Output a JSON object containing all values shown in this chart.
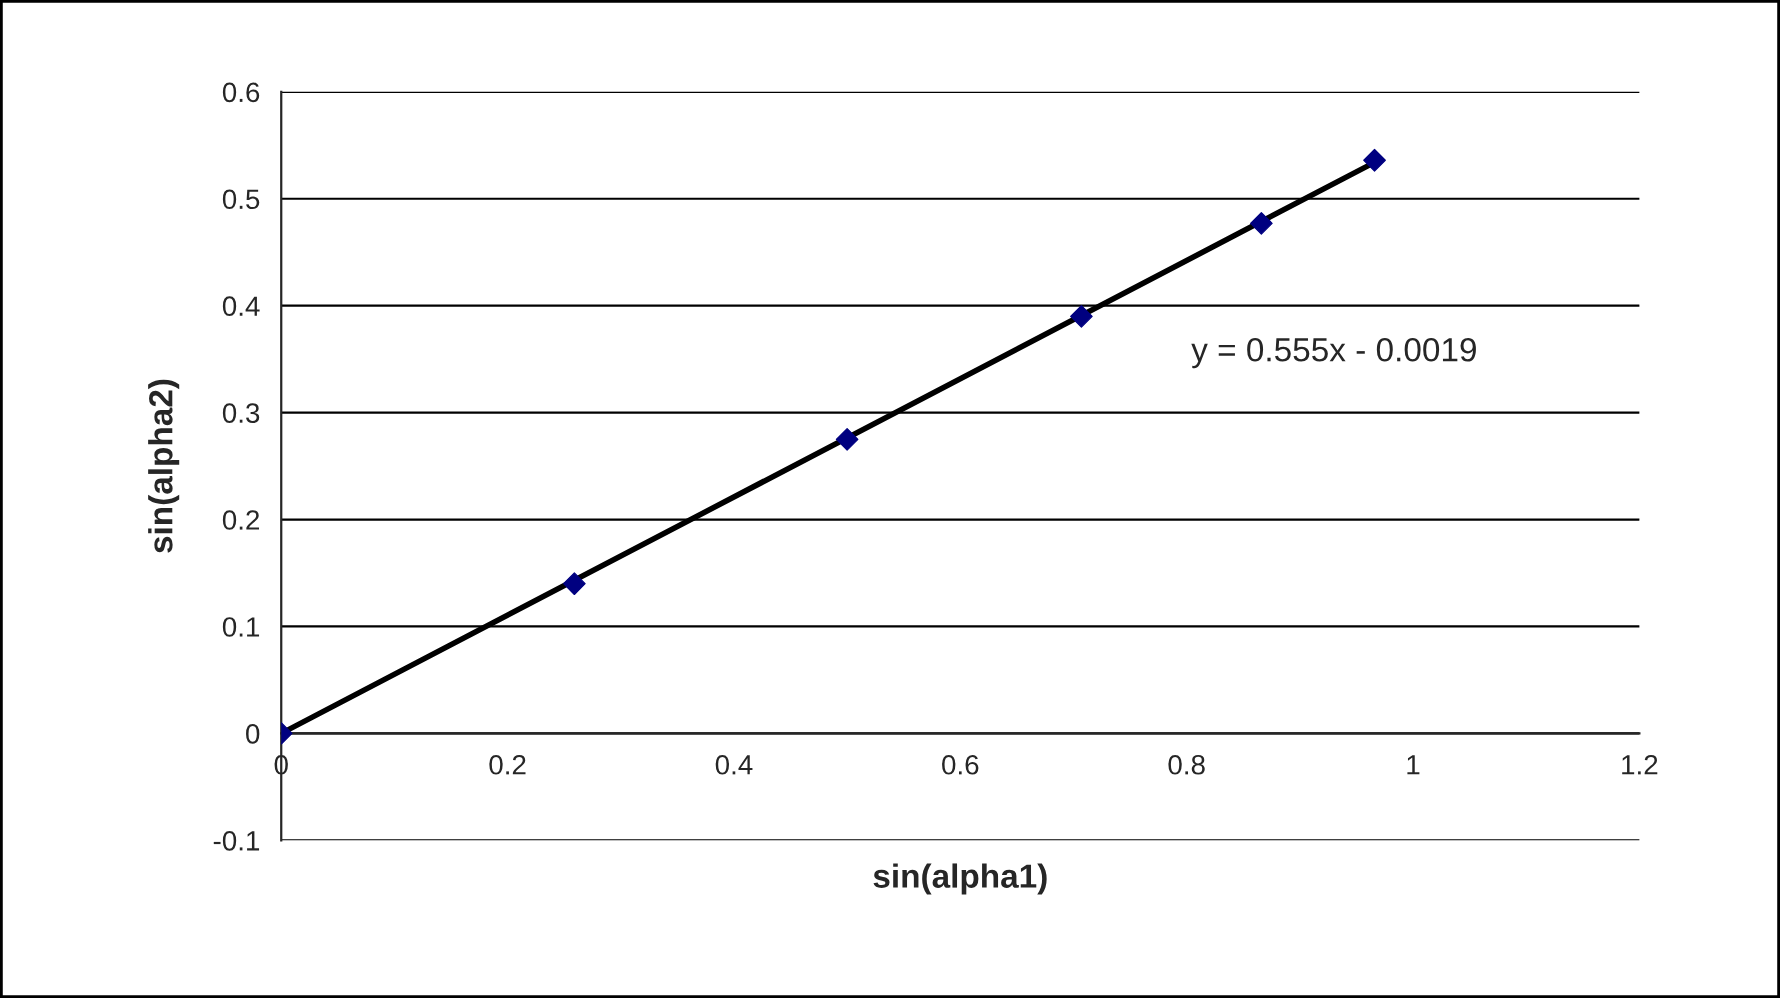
{
  "chart_data": {
    "type": "scatter",
    "xlabel": "sin(alpha1)",
    "ylabel": "sin(alpha2)",
    "series": [
      {
        "color": "#000080",
        "marker": "diamond",
        "x": [
          0,
          0.259,
          0.5,
          0.707,
          0.866,
          0.966
        ],
        "values": [
          0,
          0.14,
          0.275,
          0.39,
          0.477,
          0.536
        ]
      },
      {
        "type": "line",
        "color": "#000000",
        "marker": "none",
        "line_style": "solid",
        "x": [
          0,
          0.966
        ],
        "values": [
          0,
          0.534
        ]
      }
    ],
    "annotations": [
      "y = 0.555x - 0.0019"
    ],
    "xlim": [
      0,
      1.2
    ],
    "xticks": [
      0,
      0.2,
      0.4,
      0.6,
      0.8,
      1,
      1.2
    ],
    "ylim": [
      -0.1,
      0.6
    ],
    "yticks": [
      -0.1,
      0,
      0.1,
      0.2,
      0.3,
      0.4,
      0.5,
      0.6
    ],
    "grid": "y",
    "legend": false
  }
}
